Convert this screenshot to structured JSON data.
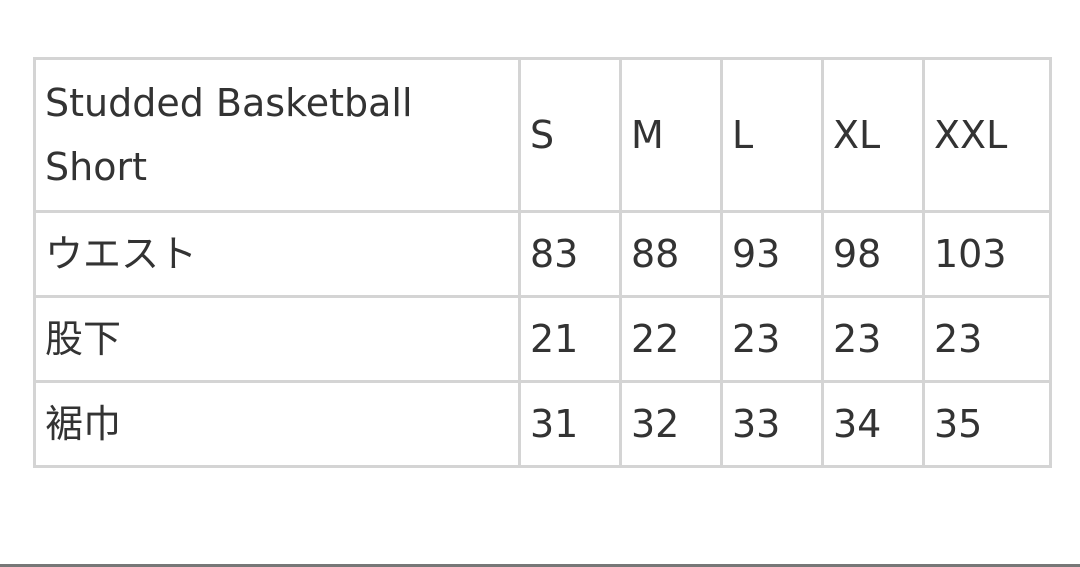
{
  "table": {
    "title": "Studded Basketball Short",
    "sizes": [
      "S",
      "M",
      "L",
      "XL",
      "XXL"
    ],
    "rows": [
      {
        "label": "ウエスト",
        "values": [
          "83",
          "88",
          "93",
          "98",
          "103"
        ]
      },
      {
        "label": "股下",
        "values": [
          "21",
          "22",
          "23",
          "23",
          "23"
        ]
      },
      {
        "label": "裾巾",
        "values": [
          "31",
          "32",
          "33",
          "34",
          "35"
        ]
      }
    ]
  }
}
